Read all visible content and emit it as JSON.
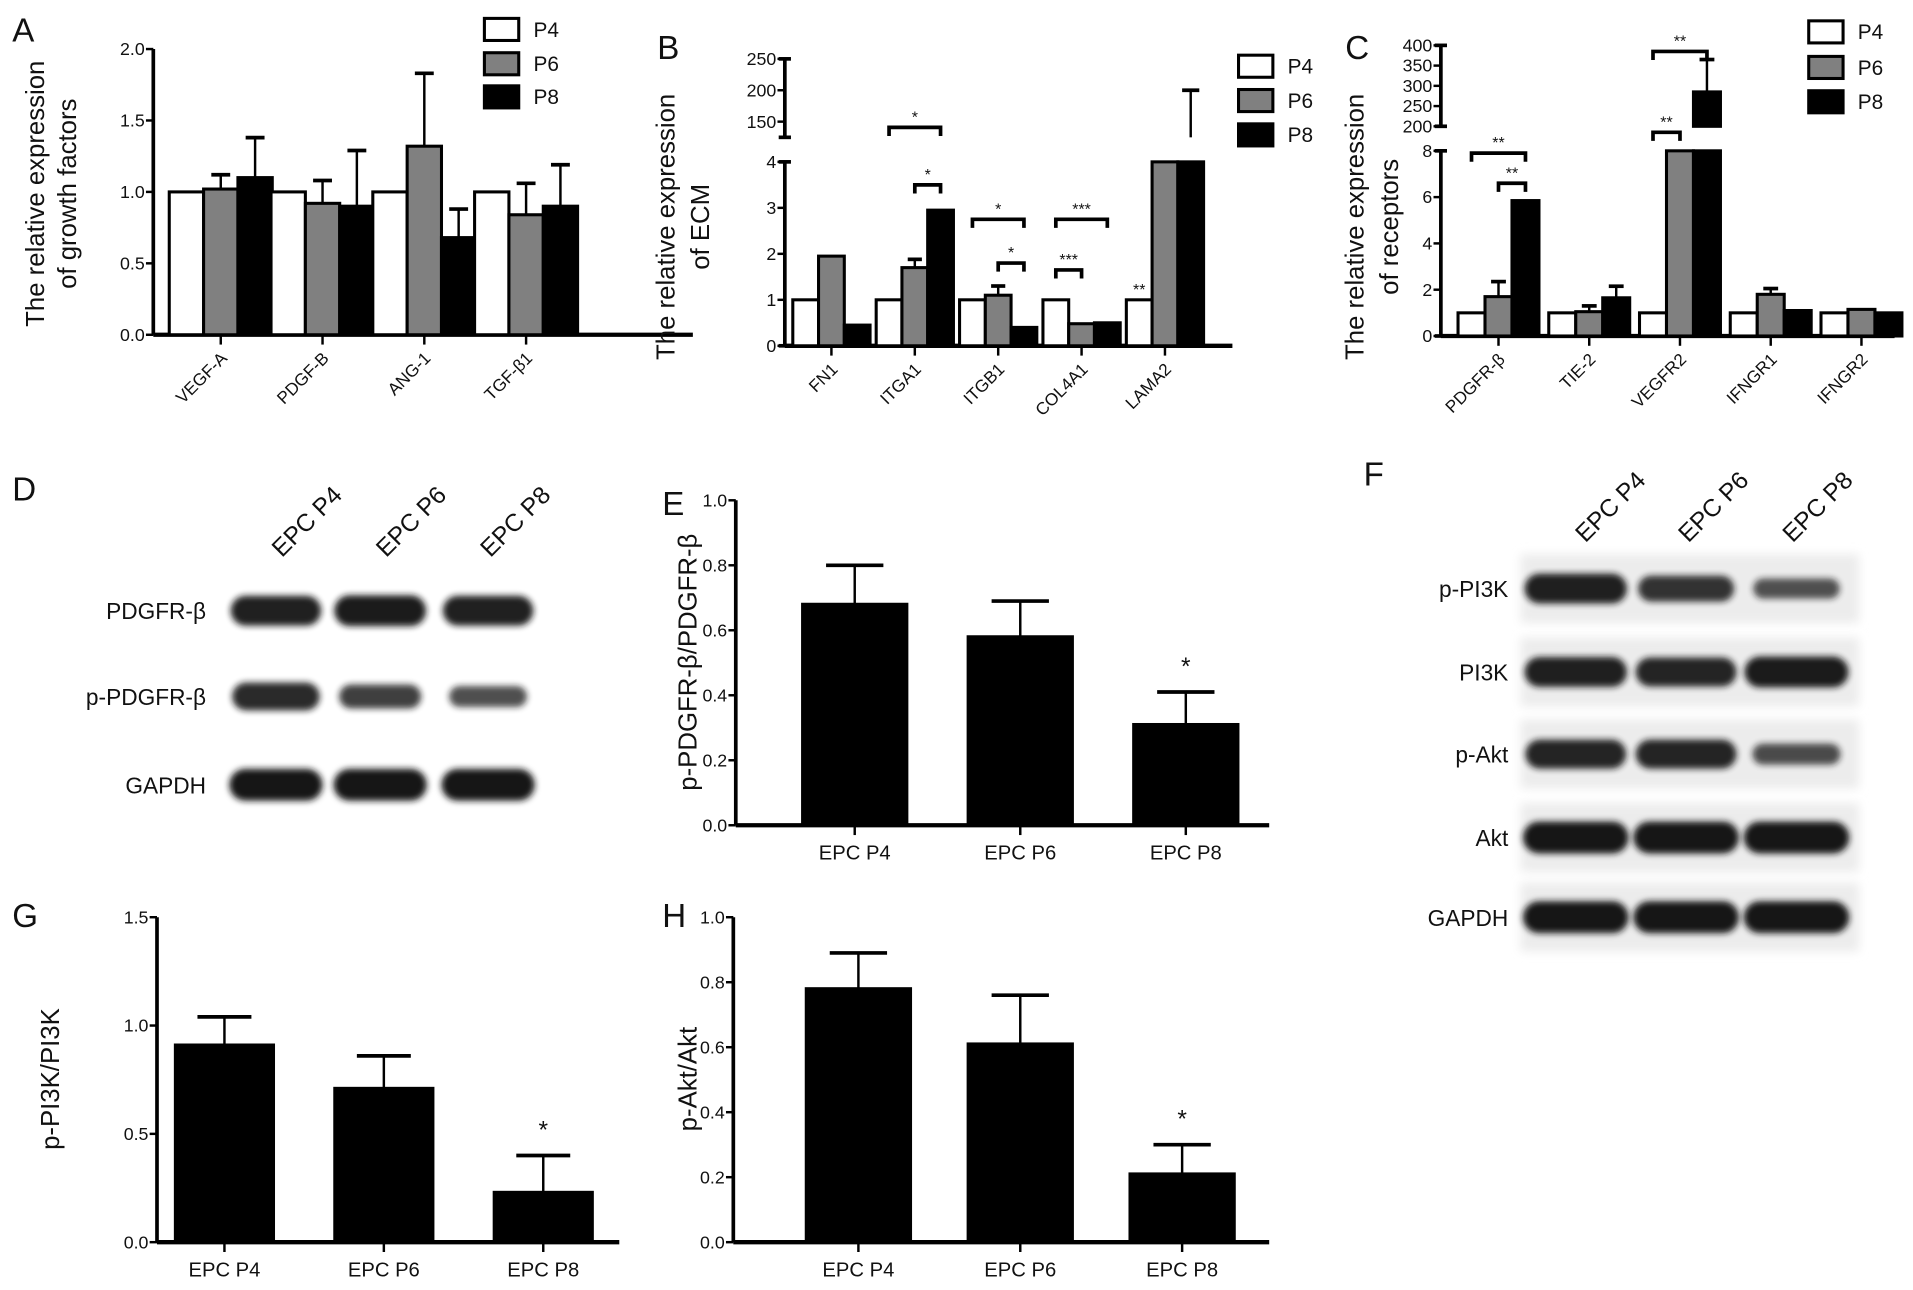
{
  "panels": [
    "A",
    "B",
    "C",
    "D",
    "E",
    "F",
    "G",
    "H"
  ],
  "chart_data": [
    {
      "panel": "A",
      "type": "bar",
      "categories": [
        "VEGF-A",
        "PDGF-B",
        "ANG-1",
        "TGF-β1"
      ],
      "ylabel": [
        "The relative expression",
        "of growth factors"
      ],
      "ylim": [
        0,
        2
      ],
      "y_ticks": [
        "0.0",
        "0.5",
        "1.0",
        "1.5",
        "2.0"
      ],
      "legend": "top-right",
      "series": [
        {
          "name": "P4",
          "color": "#ffffff",
          "values": [
            1.0,
            1.0,
            1.0,
            1.0
          ],
          "errors": [
            0,
            0,
            0,
            0
          ]
        },
        {
          "name": "P6",
          "color": "#808080",
          "values": [
            1.02,
            0.92,
            1.32,
            0.84
          ],
          "errors": [
            0.1,
            0.16,
            0.51,
            0.22
          ]
        },
        {
          "name": "P8",
          "color": "#000000",
          "values": [
            1.1,
            0.9,
            0.68,
            0.9
          ],
          "errors": [
            0.28,
            0.39,
            0.2,
            0.29
          ]
        }
      ],
      "significance": [],
      "markers": []
    },
    {
      "panel": "B",
      "type": "bar",
      "categories": [
        "FN1",
        "ITGA1",
        "ITGB1",
        "COL4A1",
        "LAMA2"
      ],
      "ylabel": [
        "The relative expression",
        "of ECM"
      ],
      "axis_break": {
        "lower": [
          0,
          4
        ],
        "upper": [
          125,
          250
        ]
      },
      "y_ticks": [
        "0",
        "1",
        "2",
        "3",
        "4"
      ],
      "y_ticks_upper": [
        "150",
        "200",
        "250"
      ],
      "legend": "top-right",
      "series": [
        {
          "name": "P4",
          "color": "#ffffff",
          "values": [
            1,
            1,
            1,
            1,
            1
          ],
          "errors": [
            0,
            0,
            0,
            0,
            0
          ]
        },
        {
          "name": "P6",
          "color": "#808080",
          "values": [
            1.95,
            1.7,
            1.1,
            0.48,
            null
          ],
          "errors": [
            0,
            0.18,
            0.2,
            0,
            0
          ]
        },
        {
          "name": "P8",
          "color": "#000000",
          "values": [
            0.45,
            2.95,
            0.4,
            0.5,
            null
          ],
          "errors": [
            0,
            0,
            0,
            0,
            0
          ]
        }
      ],
      "upper_whiskers": [
        {
          "category": 4,
          "series": 2,
          "from": 125,
          "to": 200
        }
      ],
      "significance": [
        {
          "category": 1,
          "from": 0,
          "to": 2,
          "label": "*",
          "level": 4.75
        },
        {
          "category": 1,
          "from": 1,
          "to": 2,
          "label": "*",
          "level": 3.5
        },
        {
          "category": 2,
          "from": 0,
          "to": 2,
          "label": "*",
          "level": 2.75
        },
        {
          "category": 2,
          "from": 1,
          "to": 2,
          "label": "*",
          "level": 1.8
        },
        {
          "category": 3,
          "from": 0,
          "to": 2,
          "label": "***",
          "level": 2.75
        },
        {
          "category": 3,
          "from": 0,
          "to": 1,
          "label": "***",
          "level": 1.65
        }
      ],
      "markers": [
        {
          "category": 4,
          "series": 0,
          "label": "**"
        }
      ]
    },
    {
      "panel": "C",
      "type": "bar",
      "categories": [
        "PDGFR-β",
        "TIE-2",
        "VEGFR2",
        "IFNGR1",
        "IFNGR2"
      ],
      "ylabel": [
        "The relative expression",
        "of receptors"
      ],
      "axis_break": {
        "lower": [
          0,
          8
        ],
        "upper": [
          200,
          400
        ]
      },
      "y_ticks": [
        "0",
        "2",
        "4",
        "6",
        "8"
      ],
      "y_ticks_upper": [
        "200",
        "250",
        "300",
        "350",
        "400"
      ],
      "legend": "top-right",
      "series": [
        {
          "name": "P4",
          "color": "#ffffff",
          "values": [
            1,
            1,
            1,
            1,
            1
          ],
          "errors": [
            0,
            0,
            0,
            0,
            0
          ]
        },
        {
          "name": "P6",
          "color": "#808080",
          "values": [
            1.7,
            1.05,
            null,
            1.8,
            1.15
          ],
          "errors": [
            0.65,
            0.25,
            0,
            0.25,
            0
          ]
        },
        {
          "name": "P8",
          "color": "#000000",
          "values": [
            5.85,
            1.65,
            285,
            1.1,
            1.0
          ],
          "errors": [
            0,
            0.5,
            80,
            0,
            0
          ]
        }
      ],
      "upper_whiskers": [],
      "significance": [
        {
          "category": 0,
          "from": 0,
          "to": 2,
          "label": "**",
          "level": 7.9
        },
        {
          "category": 0,
          "from": 1,
          "to": 2,
          "label": "**",
          "level": 6.6
        },
        {
          "category": 2,
          "from": 0,
          "to": 2,
          "label": "**",
          "level": 385
        },
        {
          "category": 2,
          "from": 0,
          "to": 1,
          "label": "**",
          "level": 8.8
        }
      ],
      "markers": []
    },
    {
      "panel": "E",
      "type": "bar",
      "categories": [
        "EPC P4",
        "EPC P6",
        "EPC P8"
      ],
      "ylabel": [
        "p-PDGFR-β/PDGFR-β"
      ],
      "ylim": [
        0,
        1
      ],
      "y_ticks": [
        "0.0",
        "0.2",
        "0.4",
        "0.6",
        "0.8",
        "1.0"
      ],
      "series": [
        {
          "color": "#000000",
          "values": [
            0.68,
            0.58,
            0.31
          ],
          "errors": [
            0.12,
            0.11,
            0.1
          ]
        }
      ],
      "stars": [
        "",
        "",
        "*"
      ]
    },
    {
      "panel": "G",
      "type": "bar",
      "categories": [
        "EPC P4",
        "EPC P6",
        "EPC P8"
      ],
      "ylabel": [
        "p-PI3K/PI3K"
      ],
      "ylim": [
        0,
        1.5
      ],
      "y_ticks": [
        "0.0",
        "0.5",
        "1.0",
        "1.5"
      ],
      "series": [
        {
          "color": "#000000",
          "values": [
            0.91,
            0.71,
            0.23
          ],
          "errors": [
            0.13,
            0.15,
            0.17
          ]
        }
      ],
      "stars": [
        "",
        "",
        "*"
      ]
    },
    {
      "panel": "H",
      "type": "bar",
      "categories": [
        "EPC P4",
        "EPC P6",
        "EPC P8"
      ],
      "ylabel": [
        "p-Akt/Akt"
      ],
      "ylim": [
        0,
        1
      ],
      "y_ticks": [
        "0.0",
        "0.2",
        "0.4",
        "0.6",
        "0.8",
        "1.0"
      ],
      "series": [
        {
          "color": "#000000",
          "values": [
            0.78,
            0.61,
            0.21
          ],
          "errors": [
            0.11,
            0.15,
            0.09
          ]
        }
      ],
      "stars": [
        "",
        "",
        "*"
      ]
    }
  ],
  "blots": [
    {
      "panel": "D",
      "lanes": [
        "EPC P4",
        "EPC P6",
        "EPC P8"
      ],
      "rows": [
        {
          "label": "PDGFR-β",
          "intensity": [
            0.9,
            0.95,
            0.9
          ]
        },
        {
          "label": "p-PDGFR-β",
          "intensity": [
            0.8,
            0.6,
            0.45
          ]
        },
        {
          "label": "GAPDH",
          "intensity": [
            1.0,
            1.0,
            1.0
          ]
        }
      ]
    },
    {
      "panel": "F",
      "lanes": [
        "EPC P4",
        "EPC P6",
        "EPC P8"
      ],
      "rows": [
        {
          "label": "p-PI3K",
          "intensity": [
            0.9,
            0.7,
            0.4
          ]
        },
        {
          "label": "PI3K",
          "intensity": [
            0.9,
            0.85,
            0.95
          ]
        },
        {
          "label": "p-Akt",
          "intensity": [
            0.85,
            0.85,
            0.45
          ]
        },
        {
          "label": "Akt",
          "intensity": [
            1.0,
            1.0,
            1.0
          ]
        },
        {
          "label": "GAPDH",
          "intensity": [
            1.0,
            1.0,
            1.0
          ]
        }
      ]
    }
  ]
}
